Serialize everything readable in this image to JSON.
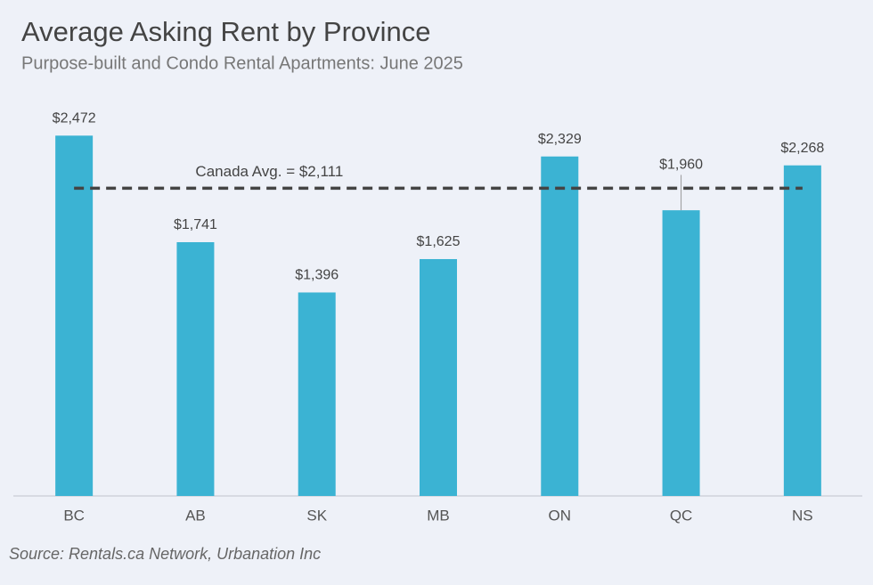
{
  "chart_data": {
    "type": "bar",
    "title": "Average Asking Rent by Province",
    "subtitle": "Purpose-built and Condo Rental Apartments: June 2025",
    "categories": [
      "BC",
      "AB",
      "SK",
      "MB",
      "ON",
      "QC",
      "NS"
    ],
    "values": [
      2472,
      1741,
      1396,
      1625,
      2329,
      1960,
      2268
    ],
    "value_labels": [
      "$2,472",
      "$1,741",
      "$1,396",
      "$1,625",
      "$2,329",
      "$1,960",
      "$2,268"
    ],
    "color": "#3bb3d3",
    "ylim": [
      0,
      2700
    ],
    "reference_line": {
      "value": 2111,
      "label": "Canada Avg. = $2,111"
    },
    "source": "Source: Rentals.ca Network, Urbanation Inc"
  }
}
